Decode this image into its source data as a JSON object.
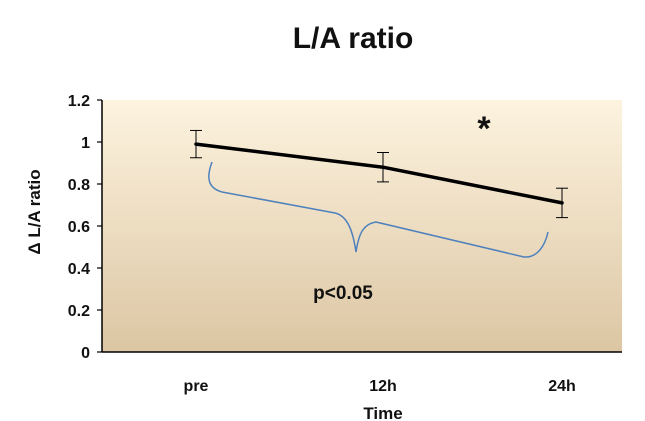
{
  "chart_data": {
    "type": "line",
    "title": "L/A ratio",
    "xlabel": "Time",
    "ylabel": "Δ L/A ratio",
    "categories": [
      "pre",
      "12h",
      "24h"
    ],
    "series": [
      {
        "values": [
          0.99,
          0.88,
          0.71
        ],
        "error": [
          0.065,
          0.07,
          0.07
        ]
      }
    ],
    "ylim": [
      0,
      1.2
    ],
    "yticks": [
      "0",
      "0.2",
      "0.4",
      "0.6",
      "0.8",
      "1",
      "1.2"
    ],
    "grid": false,
    "legend": "none",
    "annotations": {
      "significance_marker": "*",
      "p_value": "p<0.05"
    },
    "colors": {
      "line": "#000000",
      "bracket": "#4f81bd",
      "plot_bg_top": "#fdf3df",
      "plot_bg_bottom": "#dcc6a3"
    }
  }
}
